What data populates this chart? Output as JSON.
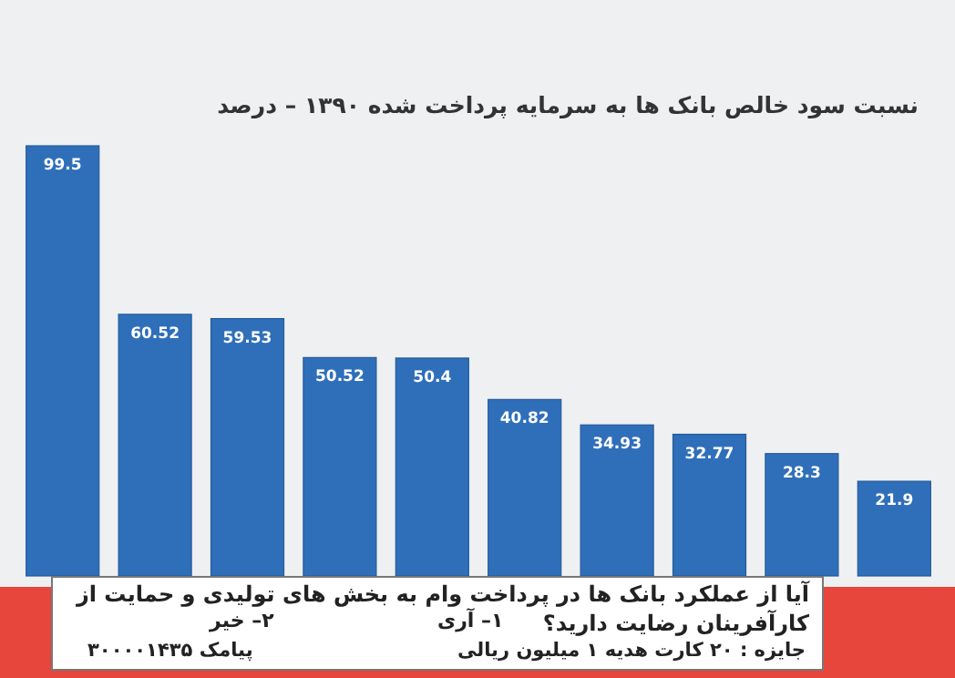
{
  "chart_data": {
    "type": "bar",
    "title": "نسبت سود خالص بانک ها به سرمایه پرداخت شده ۱۳۹۰ – درصد",
    "categories": [
      null,
      null,
      null,
      null,
      null,
      null,
      null,
      null,
      null,
      null
    ],
    "values": [
      99.5,
      60.52,
      59.53,
      50.52,
      50.4,
      40.82,
      34.93,
      32.77,
      28.3,
      21.9
    ],
    "color": "#2f6fba",
    "data_labels": true,
    "annotations": [
      "آیا از عملکرد بانک ها در پرداخت وام به بخش های تولیدی و حمایت از کارآفرینان رضایت دارید؟",
      "۱– آری",
      "۲– خیر",
      "جایزه : ۲۰ کارت هدیه ۱ میلیون ریالی",
      "پیامک ۳۰۰۰۰۱۴۳۵"
    ]
  }
}
